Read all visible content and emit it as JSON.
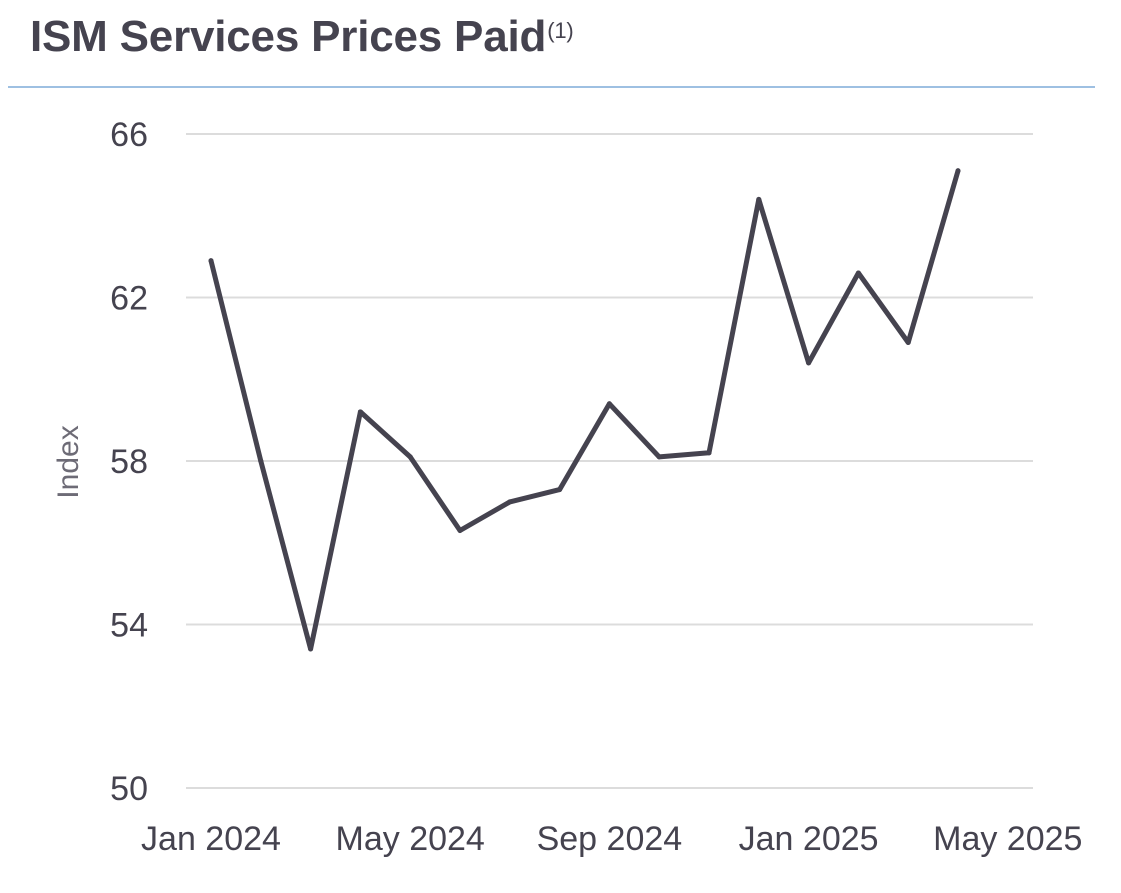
{
  "header": {
    "title": "ISM Services Prices Paid",
    "footnote_marker": "(1)"
  },
  "colors": {
    "line": "#45434f",
    "grid": "#dcdcdc",
    "rule": "#9ec0e2",
    "text": "#45434f"
  },
  "chart_data": {
    "type": "line",
    "title": "ISM Services Prices Paid(1)",
    "xlabel": "",
    "ylabel": "Index",
    "ylim": [
      50,
      66
    ],
    "yticks": [
      50,
      54,
      58,
      62,
      66
    ],
    "xticks": [
      "Jan 2024",
      "May 2024",
      "Sep 2024",
      "Jan 2025",
      "May 2025"
    ],
    "grid": true,
    "legend": "none",
    "x": [
      "Jan 2024",
      "Feb 2024",
      "Mar 2024",
      "Apr 2024",
      "May 2024",
      "Jun 2024",
      "Jul 2024",
      "Aug 2024",
      "Sep 2024",
      "Oct 2024",
      "Nov 2024",
      "Dec 2024",
      "Jan 2025",
      "Feb 2025",
      "Mar 2025",
      "Apr 2025"
    ],
    "series": [
      {
        "values": [
          62.9,
          58.0,
          53.4,
          59.2,
          58.1,
          56.3,
          57.0,
          57.3,
          59.4,
          58.1,
          58.2,
          64.4,
          60.4,
          62.6,
          60.9,
          65.1
        ]
      }
    ]
  }
}
